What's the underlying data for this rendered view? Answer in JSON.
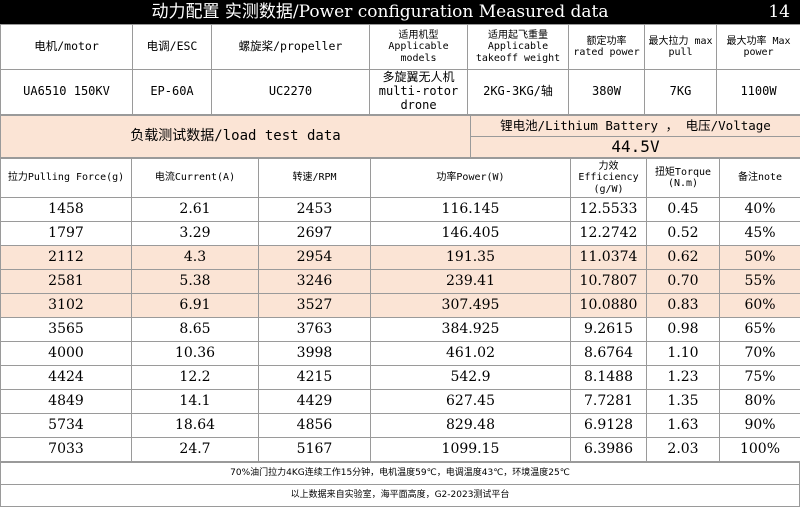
{
  "header": {
    "title": "动力配置 实测数据/Power configuration Measured data",
    "page_number": "14"
  },
  "spec": {
    "headers": [
      "电机/motor",
      "电调/ESC",
      "螺旋桨/propeller",
      "适用机型 Applicable models",
      "适用起飞重量 Applicable takeoff weight",
      "额定功率 rated power",
      "最大拉力 max pull",
      "最大功率 Max power"
    ],
    "values": [
      "UA6510 150KV",
      "EP-60A",
      "UC2270",
      "多旋翼无人机 multi-rotor drone",
      "2KG-3KG/轴",
      "380W",
      "7KG",
      "1100W"
    ]
  },
  "load_test": {
    "label": "负载测试数据/load test data",
    "battery_label": "锂电池/Lithium Battery ， 电压/Voltage",
    "voltage": "44.5V"
  },
  "table": {
    "headers": [
      "拉力Pulling Force(g)",
      "电流Current(A)",
      "转速/RPM",
      "功率Power(W)",
      "力效 Efficiency (g/W)",
      "扭矩Torque (N.m)",
      "备注note"
    ],
    "rows": [
      {
        "force": "1458",
        "current": "2.61",
        "rpm": "2453",
        "power": "116.145",
        "efficiency": "12.5533",
        "torque": "0.45",
        "note": "40%",
        "highlight": false
      },
      {
        "force": "1797",
        "current": "3.29",
        "rpm": "2697",
        "power": "146.405",
        "efficiency": "12.2742",
        "torque": "0.52",
        "note": "45%",
        "highlight": false
      },
      {
        "force": "2112",
        "current": "4.3",
        "rpm": "2954",
        "power": "191.35",
        "efficiency": "11.0374",
        "torque": "0.62",
        "note": "50%",
        "highlight": true
      },
      {
        "force": "2581",
        "current": "5.38",
        "rpm": "3246",
        "power": "239.41",
        "efficiency": "10.7807",
        "torque": "0.70",
        "note": "55%",
        "highlight": true
      },
      {
        "force": "3102",
        "current": "6.91",
        "rpm": "3527",
        "power": "307.495",
        "efficiency": "10.0880",
        "torque": "0.83",
        "note": "60%",
        "highlight": true
      },
      {
        "force": "3565",
        "current": "8.65",
        "rpm": "3763",
        "power": "384.925",
        "efficiency": "9.2615",
        "torque": "0.98",
        "note": "65%",
        "highlight": false
      },
      {
        "force": "4000",
        "current": "10.36",
        "rpm": "3998",
        "power": "461.02",
        "efficiency": "8.6764",
        "torque": "1.10",
        "note": "70%",
        "highlight": false
      },
      {
        "force": "4424",
        "current": "12.2",
        "rpm": "4215",
        "power": "542.9",
        "efficiency": "8.1488",
        "torque": "1.23",
        "note": "75%",
        "highlight": false
      },
      {
        "force": "4849",
        "current": "14.1",
        "rpm": "4429",
        "power": "627.45",
        "efficiency": "7.7281",
        "torque": "1.35",
        "note": "80%",
        "highlight": false
      },
      {
        "force": "5734",
        "current": "18.64",
        "rpm": "4856",
        "power": "829.48",
        "efficiency": "6.9128",
        "torque": "1.63",
        "note": "90%",
        "highlight": false
      },
      {
        "force": "7033",
        "current": "24.7",
        "rpm": "5167",
        "power": "1099.15",
        "efficiency": "6.3986",
        "torque": "2.03",
        "note": "100%",
        "highlight": false
      }
    ]
  },
  "notes": {
    "line1": "70%油门拉力4KG连续工作15分钟，电机温度59℃，电调温度43℃，环境温度25℃",
    "line2": "以上数据来自实验室，海平面高度，G2-2023测试平台"
  },
  "colors": {
    "highlight": "#fbe4d5",
    "title_bar": "#000000",
    "border": "#9a9a9a"
  }
}
